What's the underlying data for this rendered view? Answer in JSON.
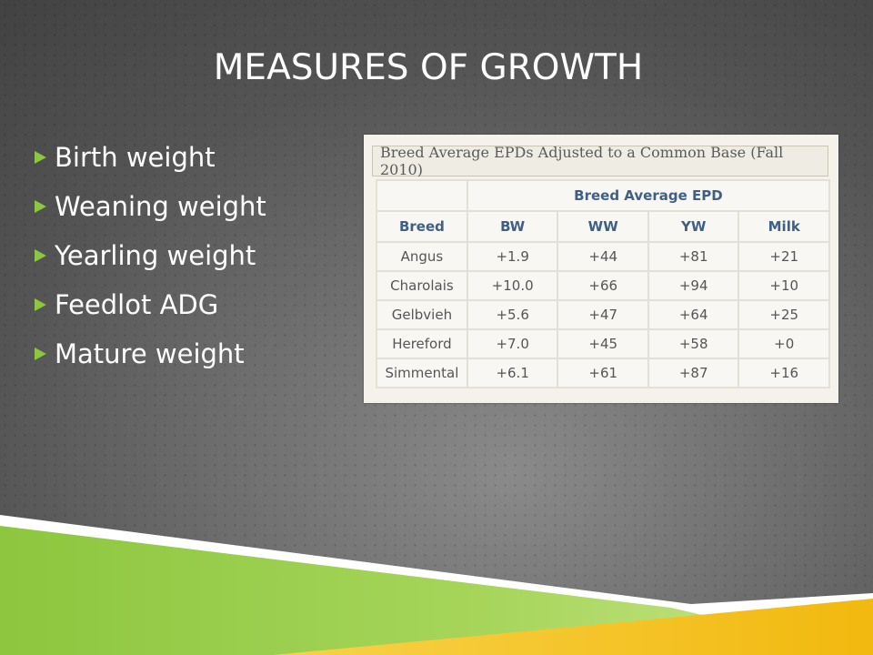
{
  "slide": {
    "title": "MEASURES OF GROWTH",
    "bullets": [
      {
        "label": "Birth weight"
      },
      {
        "label": "Weaning weight"
      },
      {
        "label": "Yearling weight"
      },
      {
        "label": "Feedlot ADG"
      },
      {
        "label": "Mature weight"
      }
    ],
    "colors": {
      "bullet_arrow": "#8dc63f",
      "ribbon_green": "#8dc63f",
      "ribbon_yellow": "#f5c21b",
      "table_header_text": "#3f5f86"
    }
  },
  "table": {
    "caption": "Breed Average EPDs Adjusted to a Common Base (Fall 2010)",
    "group_header": "Breed Average EPD",
    "columns": [
      "Breed",
      "BW",
      "WW",
      "YW",
      "Milk"
    ],
    "rows": [
      [
        "Angus",
        "+1.9",
        "+44",
        "+81",
        "+21"
      ],
      [
        "Charolais",
        "+10.0",
        "+66",
        "+94",
        "+10"
      ],
      [
        "Gelbvieh",
        "+5.6",
        "+47",
        "+64",
        "+25"
      ],
      [
        "Hereford",
        "+7.0",
        "+45",
        "+58",
        "+0"
      ],
      [
        "Simmental",
        "+6.1",
        "+61",
        "+87",
        "+16"
      ]
    ]
  }
}
